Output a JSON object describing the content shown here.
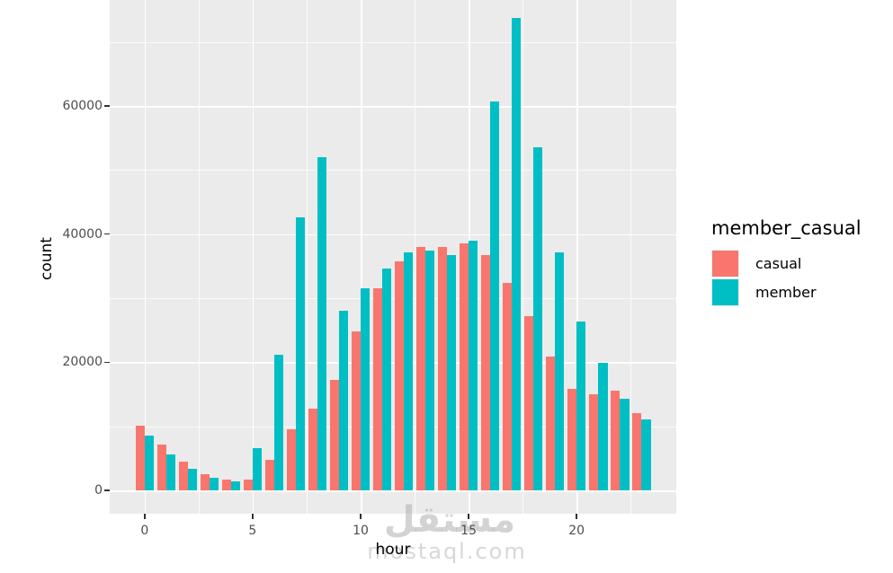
{
  "chart_data": {
    "type": "bar",
    "title": "",
    "xlabel": "hour",
    "ylabel": "count",
    "legend_title": "member_casual",
    "legend_position": "right",
    "grid": true,
    "panel_bg": "#EBEBEB",
    "categories": [
      0,
      1,
      2,
      3,
      4,
      5,
      6,
      7,
      8,
      9,
      10,
      11,
      12,
      13,
      14,
      15,
      16,
      17,
      18,
      19,
      20,
      21,
      22,
      23
    ],
    "series": [
      {
        "name": "casual",
        "color": "#F8766D",
        "values": [
          10100,
          7150,
          4450,
          2500,
          1700,
          1750,
          4700,
          9600,
          12800,
          17200,
          24800,
          31600,
          35800,
          38000,
          38000,
          38500,
          36700,
          32400,
          27200,
          20900,
          15900,
          15000,
          15600,
          12100
        ]
      },
      {
        "name": "member",
        "color": "#00BFC4",
        "values": [
          8500,
          5600,
          3400,
          2000,
          1350,
          6600,
          21100,
          42600,
          52000,
          28000,
          31500,
          34600,
          37100,
          37400,
          36700,
          39000,
          60700,
          73700,
          53600,
          37100,
          26300,
          19900,
          14300,
          11100
        ]
      }
    ],
    "x_ticks": [
      0,
      5,
      10,
      15,
      20
    ],
    "x_minor_ticks": [
      2.5,
      7.5,
      12.5,
      17.5,
      22.5
    ],
    "y_ticks": [
      0,
      20000,
      40000,
      60000
    ],
    "y_minor_ticks": [
      10000,
      30000,
      50000,
      70000
    ],
    "ylim": [
      0,
      76500
    ],
    "xlim": [
      -1.6,
      24.6
    ]
  },
  "axes": {
    "x_title": "hour",
    "y_title": "count",
    "x_tick_labels": [
      "0",
      "5",
      "10",
      "15",
      "20"
    ],
    "y_tick_labels": [
      "0",
      "20000",
      "40000",
      "60000"
    ]
  },
  "legend": {
    "title": "member_casual",
    "items": [
      {
        "label": "casual",
        "color": "#F8766D"
      },
      {
        "label": "member",
        "color": "#00BFC4"
      }
    ]
  },
  "watermark": {
    "line1": "مستقل",
    "line2": "mostaql.com"
  }
}
